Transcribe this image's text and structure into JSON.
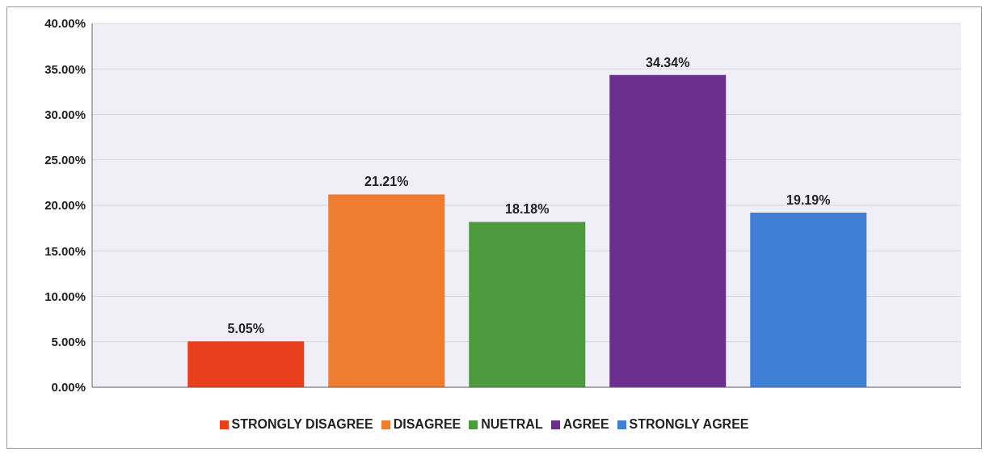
{
  "chart_data": {
    "type": "bar",
    "categories": [
      null
    ],
    "series": [
      {
        "name": "STRONGLY DISAGREE",
        "color": "#e8401c",
        "values": [
          5.05
        ],
        "value_labels": [
          "5.05%"
        ]
      },
      {
        "name": "DISAGREE",
        "color": "#ee7d31",
        "values": [
          21.21
        ],
        "value_labels": [
          "21.21%"
        ]
      },
      {
        "name": "NUETRAL",
        "color": "#4e9a3f",
        "values": [
          18.18
        ],
        "value_labels": [
          "18.18%"
        ]
      },
      {
        "name": "AGREE",
        "color": "#6b2f8f",
        "values": [
          34.34
        ],
        "value_labels": [
          "34.34%"
        ]
      },
      {
        "name": "STRONGLY AGREE",
        "color": "#3f7fd6",
        "values": [
          19.19
        ],
        "value_labels": [
          "19.19%"
        ]
      }
    ],
    "ylim": [
      0,
      40
    ],
    "yticks": [
      {
        "value": 0,
        "label": "0.00%"
      },
      {
        "value": 5,
        "label": "5.00%"
      },
      {
        "value": 10,
        "label": "10.00%"
      },
      {
        "value": 15,
        "label": "15.00%"
      },
      {
        "value": 20,
        "label": "20.00%"
      },
      {
        "value": 25,
        "label": "25.00%"
      },
      {
        "value": 30,
        "label": "30.00%"
      },
      {
        "value": 35,
        "label": "35.00%"
      },
      {
        "value": 40,
        "label": "40.00%"
      }
    ],
    "grid": "y",
    "legend": "bottom"
  }
}
